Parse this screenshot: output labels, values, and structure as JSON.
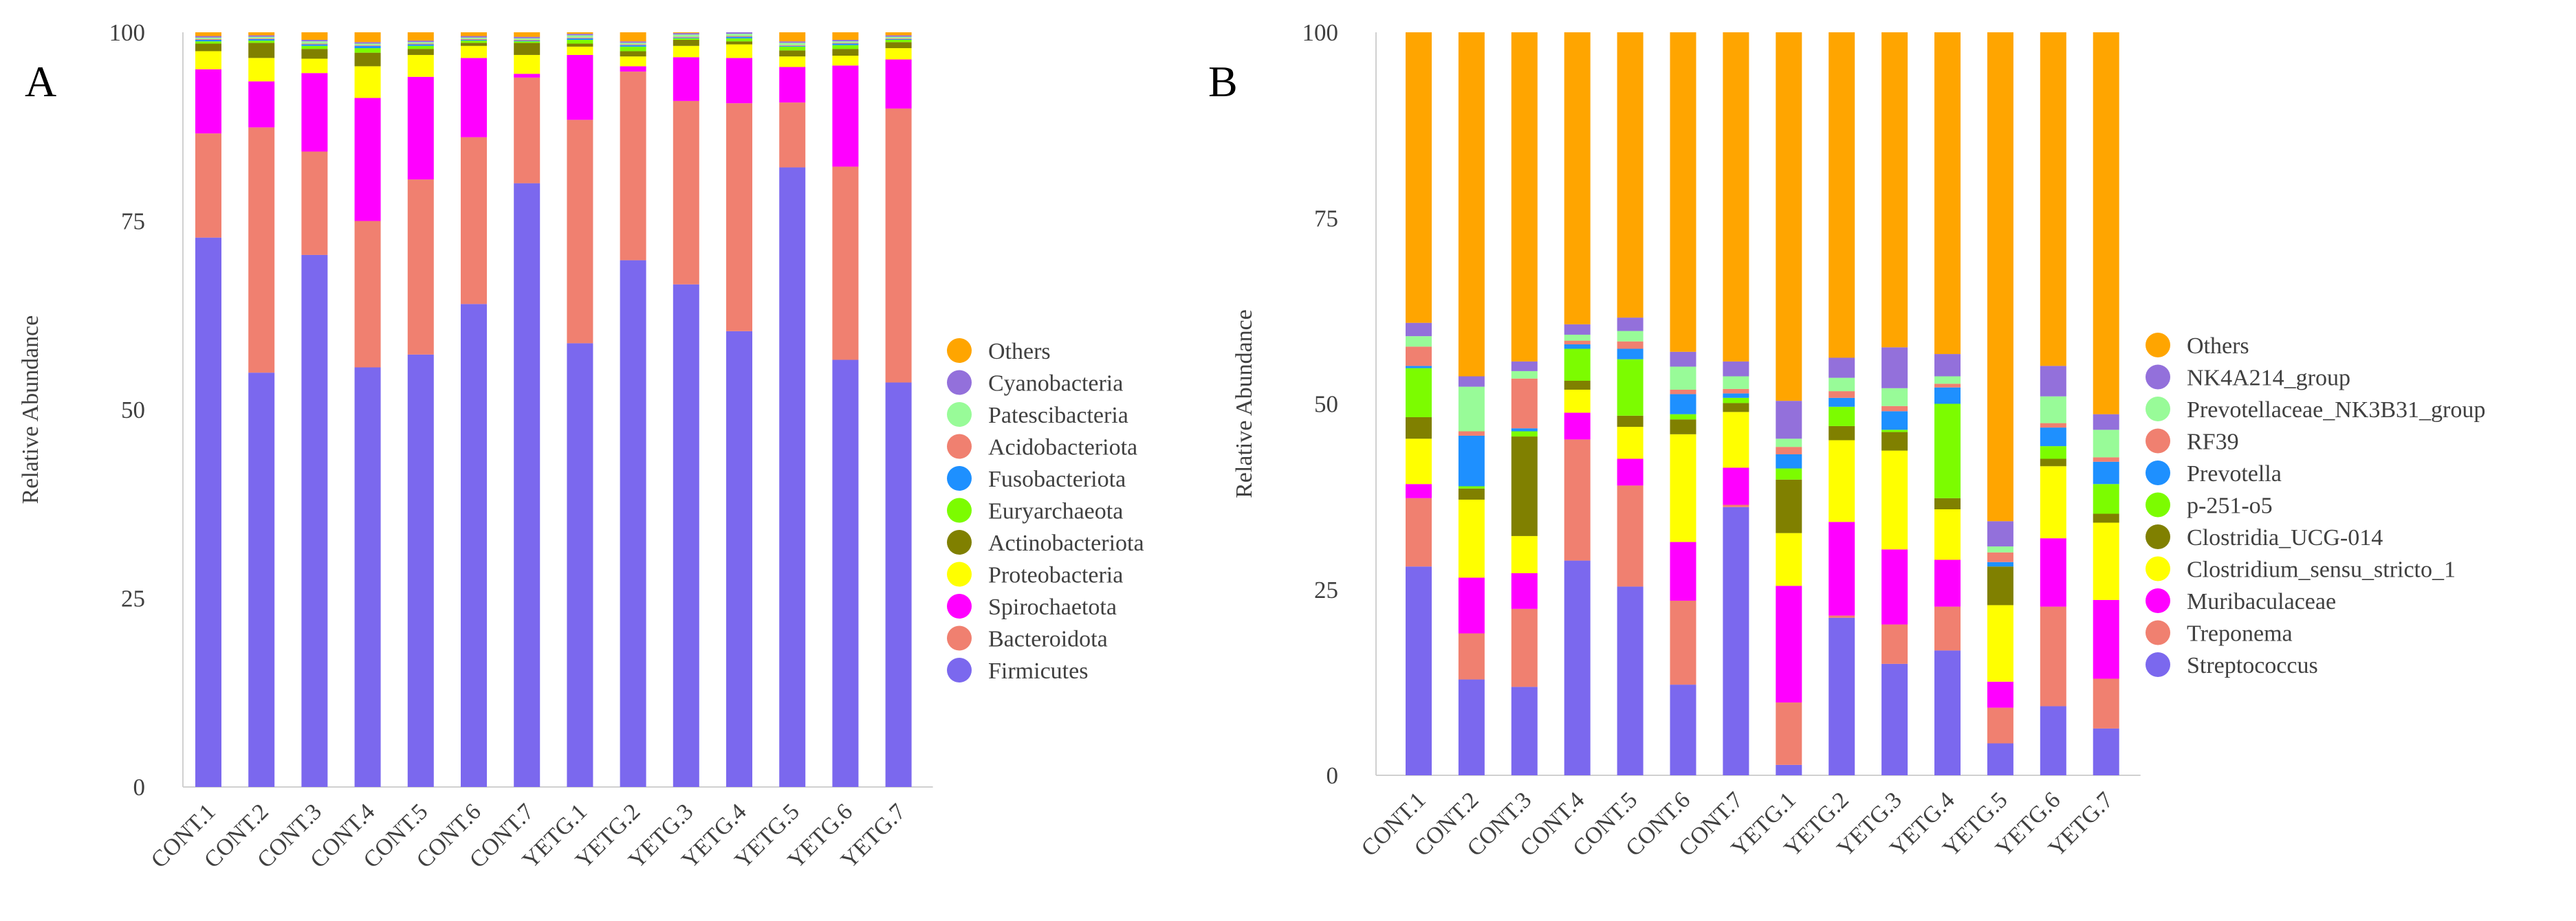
{
  "figure": {
    "panel_a_letter": "A",
    "panel_b_letter": "B"
  },
  "chart_data": [
    {
      "panel": "A",
      "type": "bar",
      "stacked": true,
      "title": "",
      "xlabel": "",
      "ylabel": "Relative Abundance",
      "ylim": [
        0,
        100
      ],
      "yticks": [
        0,
        25,
        50,
        75,
        100
      ],
      "grid": false,
      "legend_position": "right",
      "categories": [
        "CONT.1",
        "CONT.2",
        "CONT.3",
        "CONT.4",
        "CONT.5",
        "CONT.6",
        "CONT.7",
        "YETG.1",
        "YETG.2",
        "YETG.3",
        "YETG.4",
        "YETG.5",
        "YETG.6",
        "YETG.7"
      ],
      "series": [
        {
          "name": "Firmicutes",
          "color": "#7b68ee",
          "values": [
            72.8,
            54.9,
            70.5,
            55.6,
            57.3,
            64.0,
            80.0,
            58.8,
            69.8,
            66.6,
            60.4,
            82.1,
            56.6,
            53.6
          ]
        },
        {
          "name": "Bacteroidota",
          "color": "#f08070",
          "values": [
            13.8,
            32.5,
            13.7,
            19.4,
            23.2,
            22.1,
            14.0,
            29.6,
            25.0,
            24.3,
            30.2,
            8.6,
            25.6,
            36.3
          ]
        },
        {
          "name": "Spirochaetota",
          "color": "#ff00ff",
          "values": [
            8.5,
            6.1,
            10.4,
            16.3,
            13.6,
            10.5,
            0.5,
            8.6,
            0.7,
            5.8,
            6.0,
            4.7,
            13.4,
            6.5
          ]
        },
        {
          "name": "Proteobacteria",
          "color": "#ffff00",
          "values": [
            2.4,
            3.1,
            1.9,
            4.2,
            2.9,
            1.6,
            2.5,
            1.1,
            1.3,
            1.5,
            1.8,
            1.4,
            1.3,
            1.5
          ]
        },
        {
          "name": "Actinobacteriota",
          "color": "#808000",
          "values": [
            1.0,
            2.0,
            1.3,
            1.8,
            0.8,
            0.4,
            1.6,
            0.4,
            0.7,
            0.8,
            0.4,
            0.8,
            0.9,
            0.8
          ]
        },
        {
          "name": "Euryarchaeota",
          "color": "#7cfc00",
          "values": [
            0.3,
            0.3,
            0.4,
            0.6,
            0.4,
            0.3,
            0.2,
            0.5,
            0.6,
            0.2,
            0.4,
            0.5,
            0.5,
            0.3
          ]
        },
        {
          "name": "Fusobacteriota",
          "color": "#1e90ff",
          "values": [
            0.2,
            0.2,
            0.2,
            0.3,
            0.2,
            0.1,
            0.1,
            0.2,
            0.2,
            0.1,
            0.2,
            0.1,
            0.2,
            0.1
          ]
        },
        {
          "name": "Acidobacteriota",
          "color": "#f08070",
          "values": [
            0.1,
            0.1,
            0.1,
            0.1,
            0.1,
            0.1,
            0.1,
            0.1,
            0.1,
            0.1,
            0.1,
            0.1,
            0.1,
            0.1
          ]
        },
        {
          "name": "Patescibacteria",
          "color": "#98fb98",
          "values": [
            0.2,
            0.2,
            0.3,
            0.2,
            0.2,
            0.2,
            0.2,
            0.3,
            0.2,
            0.3,
            0.3,
            0.3,
            0.2,
            0.2
          ]
        },
        {
          "name": "Cyanobacteria",
          "color": "#9370db",
          "values": [
            0.2,
            0.2,
            0.2,
            0.2,
            0.2,
            0.2,
            0.2,
            0.2,
            0.2,
            0.2,
            0.2,
            0.2,
            0.2,
            0.2
          ]
        },
        {
          "name": "Others",
          "color": "#ffa500",
          "values": [
            0.5,
            0.4,
            1.0,
            1.3,
            1.1,
            0.5,
            0.6,
            0.2,
            1.2,
            0.1,
            0.0,
            1.2,
            1.0,
            0.4
          ]
        }
      ]
    },
    {
      "panel": "B",
      "type": "bar",
      "stacked": true,
      "title": "",
      "xlabel": "",
      "ylabel": "Relative Abundance",
      "ylim": [
        0,
        100
      ],
      "yticks": [
        0,
        25,
        50,
        75,
        100
      ],
      "grid": false,
      "legend_position": "right",
      "categories": [
        "CONT.1",
        "CONT.2",
        "CONT.3",
        "CONT.4",
        "CONT.5",
        "CONT.6",
        "CONT.7",
        "YETG.1",
        "YETG.2",
        "YETG.3",
        "YETG.4",
        "YETG.5",
        "YETG.6",
        "YETG.7"
      ],
      "series": [
        {
          "name": "Streptococcus",
          "color": "#7b68ee",
          "values": [
            28.1,
            12.9,
            11.9,
            28.9,
            25.4,
            12.2,
            36.1,
            1.4,
            21.2,
            15.0,
            16.8,
            4.3,
            9.3,
            6.3
          ]
        },
        {
          "name": "Treponema",
          "color": "#f08070",
          "values": [
            9.2,
            6.2,
            10.5,
            16.3,
            13.6,
            11.3,
            0.3,
            8.4,
            0.3,
            5.3,
            5.9,
            4.8,
            13.4,
            6.7
          ]
        },
        {
          "name": "Muribaculaceae",
          "color": "#ff00ff",
          "values": [
            1.9,
            7.5,
            4.8,
            3.6,
            3.6,
            7.9,
            5.0,
            15.7,
            12.6,
            10.1,
            6.3,
            3.5,
            9.2,
            10.6
          ]
        },
        {
          "name": "Clostridium_sensu_stricto_1",
          "color": "#ffff00",
          "values": [
            6.1,
            10.5,
            5.0,
            3.1,
            4.3,
            14.5,
            7.5,
            7.1,
            11.0,
            13.3,
            6.8,
            10.3,
            9.7,
            10.4
          ]
        },
        {
          "name": "Clostridia_UCG-014",
          "color": "#808000",
          "values": [
            2.9,
            1.5,
            13.4,
            1.2,
            1.5,
            2.0,
            1.2,
            7.2,
            1.9,
            2.5,
            1.5,
            5.2,
            1.0,
            1.2
          ]
        },
        {
          "name": "p-251-o5",
          "color": "#7cfc00",
          "values": [
            6.6,
            0.3,
            0.7,
            4.3,
            7.6,
            0.7,
            0.7,
            1.5,
            2.6,
            0.3,
            12.7,
            0.0,
            1.7,
            4.0
          ]
        },
        {
          "name": "Prevotella",
          "color": "#1e90ff",
          "values": [
            0.3,
            6.8,
            0.4,
            0.6,
            1.4,
            2.7,
            0.6,
            1.9,
            1.2,
            2.5,
            2.2,
            0.6,
            2.5,
            3.0
          ]
        },
        {
          "name": "RF39",
          "color": "#f08070",
          "values": [
            2.6,
            0.6,
            6.7,
            0.5,
            1.0,
            0.6,
            0.6,
            1.0,
            0.9,
            0.7,
            0.5,
            1.3,
            0.6,
            0.6
          ]
        },
        {
          "name": "Prevotellaceae_NK3B31_group",
          "color": "#98fb98",
          "values": [
            1.4,
            6.0,
            1.0,
            0.8,
            1.4,
            3.1,
            1.7,
            1.1,
            1.8,
            2.4,
            1.0,
            0.8,
            3.6,
            3.7
          ]
        },
        {
          "name": "NK4A214_group",
          "color": "#9370db",
          "values": [
            1.8,
            1.4,
            1.3,
            1.4,
            1.8,
            2.0,
            2.0,
            5.1,
            2.7,
            5.5,
            3.0,
            3.4,
            4.1,
            2.1
          ]
        },
        {
          "name": "Others",
          "color": "#ffa500",
          "values": [
            39.1,
            46.3,
            44.3,
            39.3,
            38.4,
            43.0,
            44.3,
            49.6,
            43.8,
            42.4,
            43.3,
            65.8,
            44.9,
            51.4
          ]
        }
      ]
    }
  ]
}
